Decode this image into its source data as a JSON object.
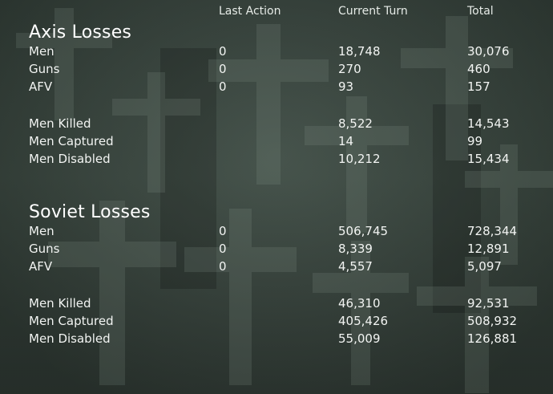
{
  "headers": {
    "last_action": "Last Action",
    "current_turn": "Current Turn",
    "total": "Total"
  },
  "axis": {
    "title": "Axis Losses",
    "rows": [
      {
        "label": "Men",
        "last": "0",
        "turn": "18,748",
        "total": "30,076"
      },
      {
        "label": "Guns",
        "last": "0",
        "turn": "270",
        "total": "460"
      },
      {
        "label": "AFV",
        "last": "0",
        "turn": "93",
        "total": "157"
      },
      {
        "label": "Men Killed",
        "last": "",
        "turn": "8,522",
        "total": "14,543"
      },
      {
        "label": "Men Captured",
        "last": "",
        "turn": "14",
        "total": "99"
      },
      {
        "label": "Men Disabled",
        "last": "",
        "turn": "10,212",
        "total": "15,434"
      }
    ]
  },
  "soviet": {
    "title": "Soviet Losses",
    "rows": [
      {
        "label": "Men",
        "last": "0",
        "turn": "506,745",
        "total": "728,344"
      },
      {
        "label": "Guns",
        "last": "0",
        "turn": "8,339",
        "total": "12,891"
      },
      {
        "label": "AFV",
        "last": "0",
        "turn": "4,557",
        "total": "5,097"
      },
      {
        "label": "Men Killed",
        "last": "",
        "turn": "46,310",
        "total": "92,531"
      },
      {
        "label": "Men Captured",
        "last": "",
        "turn": "405,426",
        "total": "508,932"
      },
      {
        "label": "Men Disabled",
        "last": "",
        "turn": "55,009",
        "total": "126,881"
      }
    ]
  },
  "colors": {
    "background": "#3a4740",
    "text": "#f2f4f2"
  }
}
